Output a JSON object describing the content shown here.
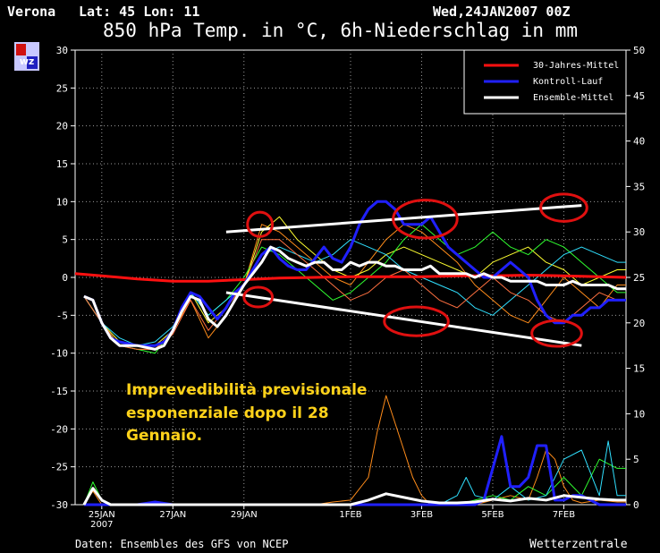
{
  "header": {
    "location": "Verona",
    "coords": "Lat: 45 Lon: 11",
    "run": "Wed,24JAN2007 00Z",
    "title": "850 hPa Temp. in °C, 6h-Niederschlag in mm"
  },
  "footer": {
    "source": "Daten: Ensembles des GFS von NCEP",
    "brand": "Wetterzentrale"
  },
  "logo": {
    "text": "wz"
  },
  "annotation": {
    "lines": [
      "Imprevedibilità previsionale",
      "esponenziale dopo il 28",
      "Gennaio."
    ],
    "color": "#ffd21a"
  },
  "chart_data": {
    "type": "line",
    "title": "850 hPa Temp. in °C, 6h-Niederschlag in mm",
    "x_unit": "days since 24JAN2007 00Z",
    "xlim": [
      0.25,
      15.75
    ],
    "x_ticks": [
      {
        "x": 1,
        "label": "25JAN",
        "sublabel": "2007"
      },
      {
        "x": 3,
        "label": "27JAN"
      },
      {
        "x": 5,
        "label": "29JAN"
      },
      {
        "x": 8,
        "label": "1FEB"
      },
      {
        "x": 10,
        "label": "3FEB"
      },
      {
        "x": 12,
        "label": "5FEB"
      },
      {
        "x": 14,
        "label": "7FEB"
      }
    ],
    "y_left": {
      "label": "°C",
      "lim": [
        -30,
        30
      ],
      "ticks": [
        30,
        25,
        20,
        15,
        10,
        5,
        0,
        -5,
        -10,
        -15,
        -20,
        -25,
        -30
      ]
    },
    "y_right": {
      "label": "mm",
      "lim": [
        0,
        50
      ],
      "ticks": [
        50,
        45,
        40,
        35,
        30,
        25,
        20,
        15,
        10,
        5,
        0
      ]
    },
    "grid": true,
    "legend": {
      "placement": "top-right",
      "entries": [
        {
          "label": "30-Jahres-Mittel",
          "color": "#ff1010"
        },
        {
          "label": "Kontroll-Lauf",
          "color": "#2020ff"
        },
        {
          "label": "Ensemble-Mittel",
          "color": "#ffffff"
        }
      ]
    },
    "series": [
      {
        "name": "30-Jahres-Mittel",
        "color": "#ff1010",
        "width": 3,
        "axis": "left",
        "x": [
          0.25,
          1,
          2,
          3,
          4,
          5,
          6,
          7,
          8,
          9,
          10,
          11,
          12,
          13,
          14,
          15,
          15.75
        ],
        "y": [
          0.5,
          0.2,
          -0.2,
          -0.5,
          -0.5,
          -0.3,
          -0.1,
          0,
          0.1,
          0.1,
          0.1,
          0.2,
          0.2,
          0.3,
          0.2,
          0.1,
          0
        ]
      },
      {
        "name": "Kontroll-Lauf",
        "color": "#2020ff",
        "width": 3,
        "axis": "left",
        "x": [
          0.5,
          0.75,
          1,
          1.25,
          1.5,
          2,
          2.5,
          2.75,
          3,
          3.25,
          3.5,
          3.75,
          4,
          4.25,
          4.5,
          4.75,
          5,
          5.25,
          5.5,
          5.75,
          6,
          6.25,
          6.5,
          6.75,
          7,
          7.25,
          7.5,
          7.75,
          8,
          8.25,
          8.5,
          8.75,
          9,
          9.25,
          9.5,
          9.75,
          10,
          10.25,
          10.5,
          10.75,
          11,
          11.25,
          11.5,
          11.75,
          12,
          12.25,
          12.5,
          12.75,
          13,
          13.25,
          13.5,
          13.75,
          14,
          14.25,
          14.5,
          14.75,
          15,
          15.25,
          15.5,
          15.75
        ],
        "y": [
          -2.5,
          -3,
          -6,
          -8,
          -8.5,
          -9,
          -9,
          -8.5,
          -7,
          -4,
          -2,
          -2.5,
          -4,
          -5.5,
          -4,
          -2,
          -1,
          1,
          3,
          4,
          2.5,
          1.5,
          1,
          1,
          2.5,
          4,
          2.5,
          2,
          4,
          7,
          9,
          10,
          10,
          9,
          7,
          7,
          7,
          8,
          6,
          4,
          3,
          2,
          1,
          0,
          0,
          1,
          2,
          1,
          0,
          -3,
          -5,
          -6,
          -6,
          -5,
          -5,
          -4,
          -4,
          -3,
          -3,
          -3
        ]
      },
      {
        "name": "Ensemble-Mittel",
        "color": "#ffffff",
        "width": 3,
        "axis": "left",
        "x": [
          0.5,
          0.75,
          1,
          1.25,
          1.5,
          2,
          2.5,
          2.75,
          3,
          3.25,
          3.5,
          3.75,
          4,
          4.25,
          4.5,
          4.75,
          5,
          5.25,
          5.5,
          5.75,
          6,
          6.25,
          6.5,
          6.75,
          7,
          7.25,
          7.5,
          7.75,
          8,
          8.25,
          8.5,
          8.75,
          9,
          9.25,
          9.5,
          9.75,
          10,
          10.25,
          10.5,
          10.75,
          11,
          11.25,
          11.5,
          11.75,
          12,
          12.25,
          12.5,
          12.75,
          13,
          13.25,
          13.5,
          13.75,
          14,
          14.25,
          14.5,
          14.75,
          15,
          15.25,
          15.5,
          15.75
        ],
        "y": [
          -2.5,
          -3,
          -6,
          -8,
          -9,
          -9,
          -9.5,
          -9,
          -7,
          -4.5,
          -2.5,
          -3,
          -5.5,
          -6.5,
          -5,
          -3,
          -1,
          0.5,
          2,
          4,
          3.5,
          2.5,
          2,
          1.5,
          2,
          2,
          1,
          1,
          2,
          1.5,
          2,
          2,
          1.5,
          1.5,
          1,
          1,
          1,
          1.5,
          0.5,
          0.5,
          0.5,
          0.5,
          0,
          0.5,
          0,
          0,
          -0.5,
          -0.5,
          -0.5,
          -0.5,
          -1,
          -1,
          -1,
          -0.5,
          -1,
          -1,
          -1,
          -1,
          -1.5,
          -1.5
        ]
      },
      {
        "name": "Ensemble member A",
        "color": "#ff8c1a",
        "width": 1,
        "axis": "left",
        "x": [
          0.5,
          1,
          1.5,
          2,
          2.5,
          3,
          3.5,
          4,
          4.5,
          5,
          5.5,
          6,
          6.5,
          7,
          7.5,
          8,
          8.5,
          9,
          9.5,
          10,
          10.5,
          11,
          11.5,
          12,
          12.5,
          13,
          13.5,
          14,
          14.5,
          15,
          15.5,
          15.75
        ],
        "y": [
          -2.5,
          -6,
          -9,
          -9.5,
          -9.5,
          -7,
          -3,
          -8,
          -5,
          -1,
          7,
          6,
          4,
          2,
          0,
          -1,
          2,
          5,
          7,
          6,
          4,
          2,
          -1,
          -3,
          -5,
          -6,
          -3,
          0,
          -2,
          -4,
          -1,
          -1
        ]
      },
      {
        "name": "Ensemble member B",
        "color": "#ffff30",
        "width": 1,
        "axis": "left",
        "x": [
          0.5,
          1,
          1.5,
          2,
          2.5,
          3,
          3.5,
          4,
          4.5,
          5,
          5.5,
          6,
          6.5,
          7,
          7.5,
          8,
          8.5,
          9,
          9.5,
          10,
          10.5,
          11,
          11.5,
          12,
          12.5,
          13,
          13.5,
          14,
          14.5,
          15,
          15.5,
          15.75
        ],
        "y": [
          -2.5,
          -6,
          -8.5,
          -9,
          -9,
          -7,
          -2,
          -6,
          -4,
          -1,
          6,
          8,
          5,
          3,
          1,
          0,
          1,
          3,
          4,
          3,
          2,
          1,
          0,
          2,
          3,
          4,
          2,
          1,
          -1,
          0,
          1,
          1
        ]
      },
      {
        "name": "Ensemble member C",
        "color": "#30ff30",
        "width": 1,
        "axis": "left",
        "x": [
          0.5,
          1,
          1.5,
          2,
          2.5,
          3,
          3.5,
          4,
          4.5,
          5,
          5.5,
          6,
          6.5,
          7,
          7.5,
          8,
          8.5,
          9,
          9.5,
          10,
          10.5,
          11,
          11.5,
          12,
          12.5,
          13,
          13.5,
          14,
          14.5,
          15,
          15.5,
          15.75
        ],
        "y": [
          -2.5,
          -6,
          -9,
          -9.5,
          -10,
          -7,
          -2,
          -5,
          -3,
          0,
          4,
          3,
          1,
          -1,
          -3,
          -2,
          0,
          2,
          5,
          7,
          5,
          3,
          4,
          6,
          4,
          3,
          5,
          4,
          2,
          0,
          -2,
          -2
        ]
      },
      {
        "name": "Ensemble member D",
        "color": "#30e0ff",
        "width": 1,
        "axis": "left",
        "x": [
          0.5,
          1,
          1.5,
          2,
          2.5,
          3,
          3.5,
          4,
          4.5,
          5,
          5.5,
          6,
          6.5,
          7,
          7.5,
          8,
          8.5,
          9,
          9.5,
          10,
          10.5,
          11,
          11.5,
          12,
          12.5,
          13,
          13.5,
          14,
          14.5,
          15,
          15.5,
          15.75
        ],
        "y": [
          -2.5,
          -6,
          -8,
          -9,
          -8.5,
          -6.5,
          -2,
          -5,
          -3,
          -1,
          3,
          4,
          3,
          2,
          3,
          5,
          4,
          3,
          1,
          0,
          -1,
          -2,
          -4,
          -5,
          -3,
          -1,
          1,
          3,
          4,
          3,
          2,
          2
        ]
      },
      {
        "name": "Ensemble member E",
        "color": "#ff7040",
        "width": 1,
        "axis": "left",
        "x": [
          0.5,
          1,
          1.5,
          2,
          2.5,
          3,
          3.5,
          4,
          4.5,
          5,
          5.5,
          6,
          6.5,
          7,
          7.5,
          8,
          8.5,
          9,
          9.5,
          10,
          10.5,
          11,
          11.5,
          12,
          12.5,
          13,
          13.5,
          14,
          14.5,
          15,
          15.5,
          15.75
        ],
        "y": [
          -2.5,
          -6,
          -9,
          -9.5,
          -9.5,
          -7.5,
          -3,
          -7,
          -4,
          -1,
          5,
          5,
          3,
          1,
          -1,
          -3,
          -2,
          0,
          1,
          -1,
          -3,
          -4,
          -2,
          0,
          -2,
          -3,
          -5,
          -6,
          -4,
          -2,
          -3,
          -3
        ]
      },
      {
        "name": "Precip A",
        "color": "#ff8c1a",
        "width": 1,
        "axis": "right",
        "x": [
          0.5,
          0.75,
          1,
          1.25,
          1.5,
          2,
          3,
          4,
          5,
          6,
          7,
          7.5,
          8,
          8.5,
          8.75,
          9,
          9.25,
          9.5,
          9.75,
          10,
          10.25,
          10.5,
          11,
          11.5,
          12,
          12.5,
          13,
          13.25,
          13.5,
          13.75,
          14,
          14.25,
          14.5,
          15,
          15.5,
          15.75
        ],
        "y": [
          0,
          1.5,
          0,
          0,
          0,
          0,
          0,
          0,
          0,
          0,
          0,
          0.3,
          0.5,
          3,
          8,
          12,
          9,
          6,
          3,
          1,
          0,
          0,
          0,
          0,
          0.5,
          1,
          0.5,
          3,
          6,
          5,
          2,
          0.5,
          0.2,
          0.5,
          0.3,
          0.3
        ]
      },
      {
        "name": "Precip B (Kontroll-Lauf)",
        "color": "#2020ff",
        "width": 3,
        "axis": "right",
        "x": [
          0.5,
          2,
          2.5,
          3,
          4,
          5,
          6,
          7,
          8,
          9,
          10,
          11,
          11.5,
          11.75,
          12,
          12.25,
          12.5,
          12.75,
          13,
          13.25,
          13.5,
          13.75,
          14,
          14.25,
          14.5,
          14.75,
          15,
          15.75
        ],
        "y": [
          0,
          0,
          0.3,
          0,
          0,
          0,
          0,
          0,
          0,
          0,
          0,
          0,
          0,
          0.5,
          4,
          7.5,
          2,
          2,
          3,
          6.5,
          6.5,
          0.5,
          0.5,
          1,
          1,
          0.5,
          0,
          0
        ]
      },
      {
        "name": "Precip C",
        "color": "#30ff30",
        "width": 1,
        "axis": "right",
        "x": [
          0.5,
          0.75,
          1,
          1.25,
          1.5,
          2,
          4,
          6,
          8,
          10,
          11,
          11.5,
          12,
          12.5,
          13,
          13.5,
          14,
          14.5,
          15,
          15.5,
          15.75
        ],
        "y": [
          0,
          2.5,
          0.5,
          0,
          0,
          0,
          0,
          0,
          0,
          0,
          0,
          0.5,
          1,
          0.5,
          2,
          1,
          3,
          1,
          5,
          4,
          4
        ]
      },
      {
        "name": "Precip D",
        "color": "#30e0ff",
        "width": 1,
        "axis": "right",
        "x": [
          0.5,
          6,
          8,
          10,
          10.5,
          11,
          11.25,
          11.5,
          12,
          12.5,
          13,
          13.5,
          14,
          14.5,
          15,
          15.25,
          15.5,
          15.75
        ],
        "y": [
          0,
          0,
          0,
          0,
          0,
          1,
          3,
          1,
          0.5,
          2,
          0.5,
          1,
          5,
          6,
          1,
          7,
          1,
          1
        ]
      },
      {
        "name": "Precip Ensemble-Mittel",
        "color": "#ffffff",
        "width": 3,
        "axis": "right",
        "x": [
          0.5,
          0.75,
          1,
          1.25,
          1.5,
          2,
          4,
          6,
          8,
          8.5,
          9,
          9.5,
          10,
          10.5,
          11,
          11.5,
          12,
          12.5,
          13,
          13.5,
          14,
          14.5,
          15,
          15.5,
          15.75
        ],
        "y": [
          0,
          1.8,
          0.5,
          0,
          0,
          0,
          0,
          0,
          0,
          0.5,
          1.2,
          0.8,
          0.4,
          0.2,
          0.2,
          0.3,
          0.6,
          0.4,
          0.7,
          0.5,
          1,
          0.8,
          0.6,
          0.5,
          0.5
        ]
      }
    ],
    "annotations": {
      "trend_lines": [
        {
          "x": [
            4.5,
            14.5
          ],
          "y": [
            6,
            9.5
          ],
          "color": "#ffffff"
        },
        {
          "x": [
            4.5,
            14.5
          ],
          "y": [
            -2,
            -9
          ],
          "color": "#ffffff"
        }
      ],
      "ellipses": [
        {
          "cx": 5.45,
          "cy": 7,
          "rx": 0.35,
          "ry": 1.6,
          "color": "#e01010"
        },
        {
          "cx": 10.1,
          "cy": 7.7,
          "rx": 0.9,
          "ry": 2.5,
          "color": "#e01010"
        },
        {
          "cx": 14.0,
          "cy": 9.2,
          "rx": 0.65,
          "ry": 1.8,
          "color": "#e01010"
        },
        {
          "cx": 5.4,
          "cy": -2.6,
          "rx": 0.4,
          "ry": 1.3,
          "color": "#e01010"
        },
        {
          "cx": 9.85,
          "cy": -5.8,
          "rx": 0.9,
          "ry": 1.9,
          "color": "#e01010"
        },
        {
          "cx": 13.8,
          "cy": -7.4,
          "rx": 0.7,
          "ry": 1.7,
          "color": "#e01010"
        }
      ]
    }
  }
}
